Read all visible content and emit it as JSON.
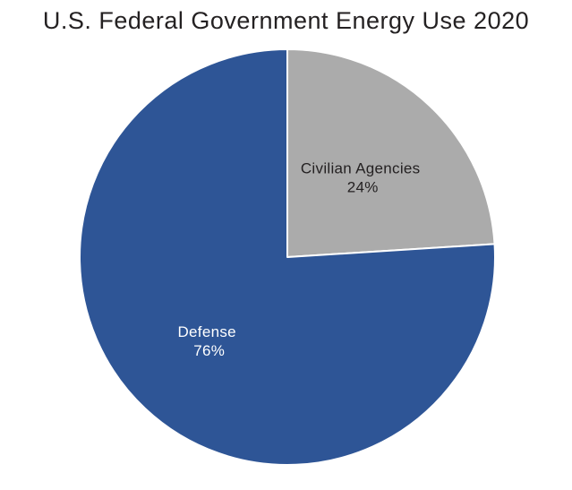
{
  "chart_data": {
    "type": "pie",
    "title": "U.S. Federal Government Energy Use 2020",
    "slices": [
      {
        "label": "Civilian Agencies",
        "value": 24,
        "pct_label": "24%",
        "color": "#ABABAB",
        "text_color": "#242122"
      },
      {
        "label": "Defense",
        "value": 76,
        "pct_label": "76%",
        "color": "#2E5596",
        "text_color": "#FFFFFF"
      }
    ],
    "start_angle_deg": 0,
    "direction": "clockwise",
    "separator_color": "#FFFFFF",
    "background": "#FFFFFF",
    "legend": "none",
    "label_style": "inside"
  }
}
